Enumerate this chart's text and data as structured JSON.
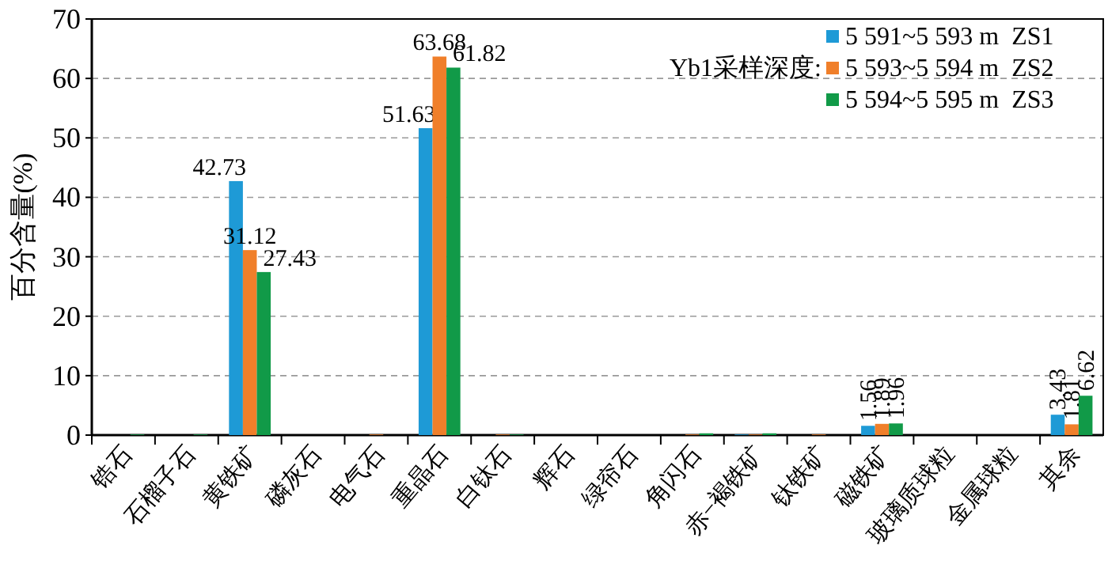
{
  "chart_data": {
    "type": "bar",
    "ylabel": "百分含量(%)",
    "legend_title": "Yb1采样深度:",
    "categories": [
      "锆石",
      "石榴子石",
      "黄铁矿",
      "磷灰石",
      "电气石",
      "重晶石",
      "白钛石",
      "辉石",
      "绿帘石",
      "角闪石",
      "赤−褐铁矿",
      "钛铁矿",
      "磁铁矿",
      "玻璃质球粒",
      "金属球粒",
      "其余"
    ],
    "series": [
      {
        "name": "5 591~5 593 m  ZS1",
        "color": "#1e9ad6",
        "values": [
          0,
          0,
          42.73,
          0,
          0,
          51.63,
          0,
          0,
          0,
          0,
          0.1,
          0,
          1.56,
          0,
          0,
          3.43
        ],
        "value_labels": [
          null,
          null,
          "42.73",
          null,
          null,
          "51.63",
          null,
          null,
          null,
          null,
          null,
          null,
          "1.56",
          null,
          null,
          "3.43"
        ]
      },
      {
        "name": "5 593~5 594 m  ZS2",
        "color": "#f07f2a",
        "values": [
          0,
          0,
          31.12,
          0,
          0.1,
          63.68,
          0.1,
          0,
          0,
          0.1,
          0.1,
          0.1,
          1.89,
          0,
          0,
          1.81
        ],
        "value_labels": [
          null,
          null,
          "31.12",
          null,
          null,
          "63.68",
          null,
          null,
          null,
          null,
          null,
          null,
          "1.89",
          null,
          null,
          "1.81"
        ]
      },
      {
        "name": "5 594~5 595 m  ZS3",
        "color": "#119a48",
        "values": [
          0.1,
          0.1,
          27.43,
          0,
          0,
          61.82,
          0.1,
          0,
          0,
          0.3,
          0.3,
          0,
          1.96,
          0,
          0,
          6.62
        ],
        "value_labels": [
          null,
          null,
          "27.43",
          null,
          null,
          "61.82",
          null,
          null,
          null,
          null,
          null,
          null,
          "1.96",
          null,
          null,
          "6.62"
        ]
      }
    ],
    "ylim": [
      0,
      70
    ],
    "yticks": [
      0,
      10,
      20,
      30,
      40,
      50,
      60,
      70
    ],
    "grid": "y",
    "legend": "top right"
  }
}
